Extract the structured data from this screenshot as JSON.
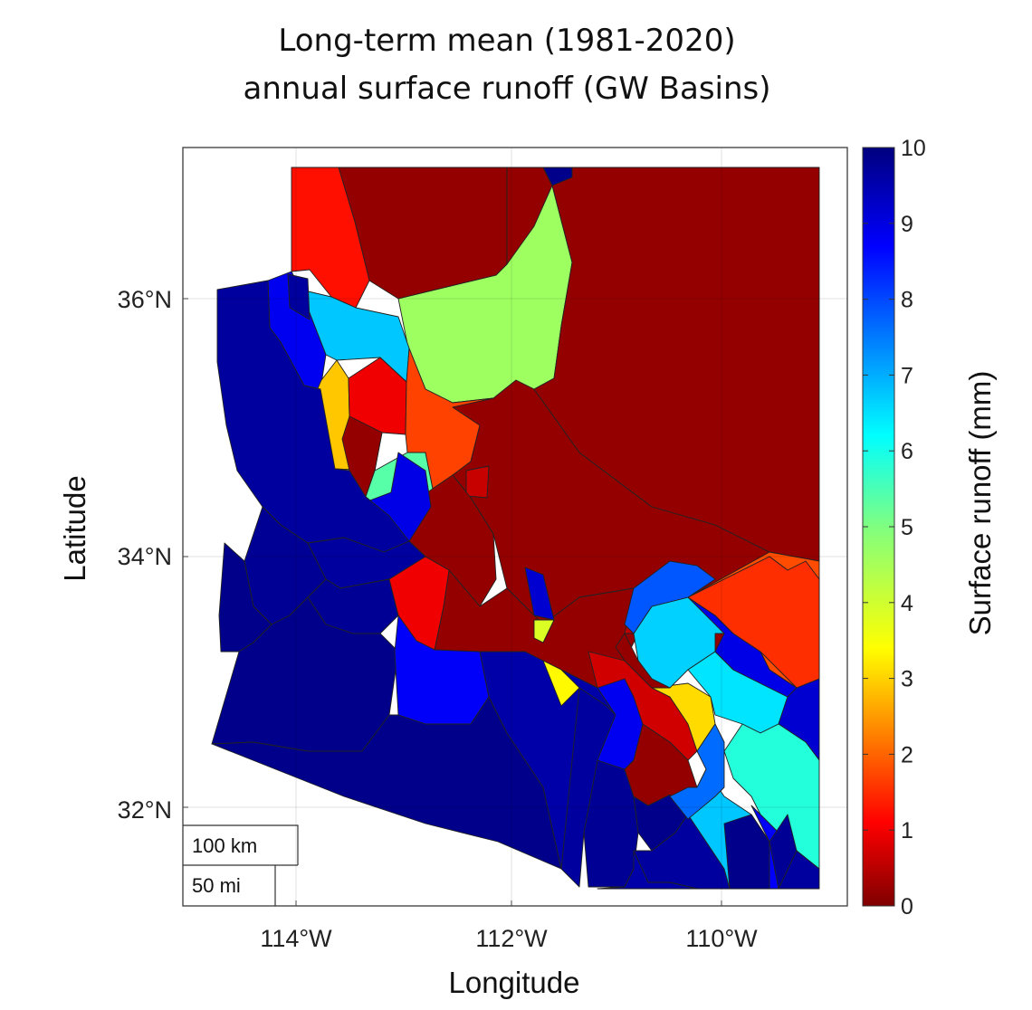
{
  "title": {
    "line1": "Long-term mean (1981-2020)",
    "line2": "annual surface runoff (GW Basins)"
  },
  "axes": {
    "xlabel": "Longitude",
    "ylabel": "Latitude",
    "x_ticks": [
      "114°W",
      "112°W",
      "110°W"
    ],
    "y_ticks": [
      "36°N",
      "34°N",
      "32°N"
    ]
  },
  "colorbar": {
    "label": "Surface runoff (mm)",
    "colormap": "jet",
    "range": [
      0,
      10
    ],
    "ticks": [
      "0",
      "1",
      "2",
      "3",
      "4",
      "5",
      "6",
      "7",
      "8",
      "9",
      "10"
    ]
  },
  "scale_bar": {
    "km_label": "100 km",
    "mi_label": "50 mi"
  },
  "map": {
    "region": "Arizona",
    "grid": true,
    "basin_runoff_mm": [
      9.8,
      8.6,
      9.8,
      0.1,
      5.3,
      3.2,
      1.1,
      0.3,
      6.8,
      8.9,
      9.8,
      4.6,
      8.1,
      0.2,
      9.8,
      9.8,
      9.3,
      9.8,
      9.8,
      0.8,
      1.0,
      0.3,
      0.2,
      0.1,
      0.3,
      0.2,
      0.1,
      8.9,
      5.9,
      1.2,
      0.1,
      0.4,
      0.3,
      0.2,
      0.1,
      0.3,
      0.4,
      1.1,
      9.8,
      9.2,
      6.6,
      3.2,
      2.3,
      3.3,
      3.5,
      9.8,
      8.0,
      0.8,
      4.1,
      1.0,
      9.8,
      9.8,
      9.4,
      1.2,
      6.3,
      8.3,
      2.1,
      0.1,
      0.3,
      0.2
    ]
  }
}
